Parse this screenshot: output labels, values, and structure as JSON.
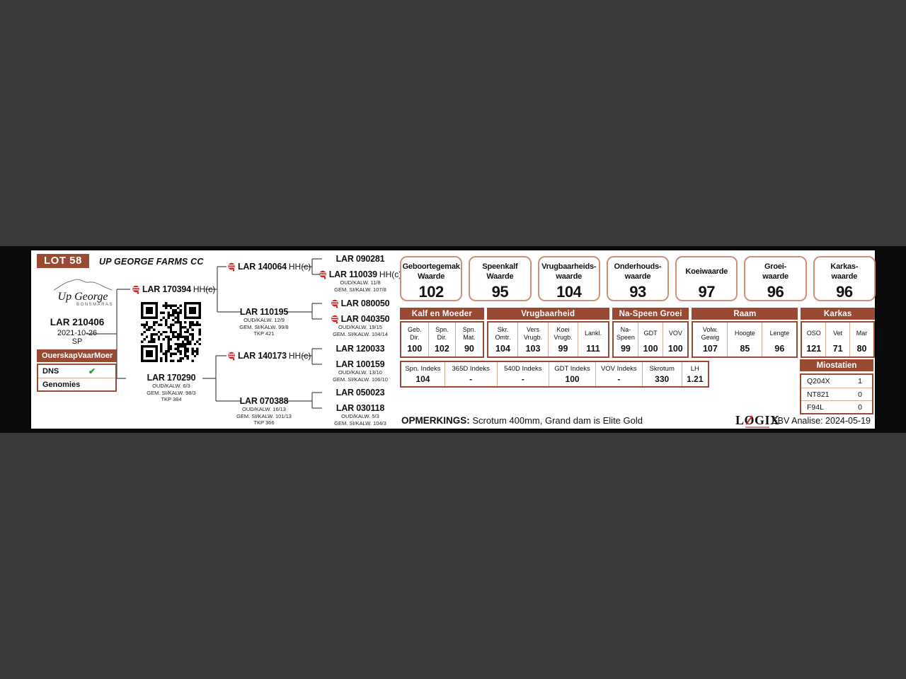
{
  "card": {
    "lot": "LOT 58",
    "farm": "UP GEORGE FARMS CC",
    "logo": {
      "name": "Up George",
      "sub": "BONSMARAS"
    },
    "animal": {
      "id": "LAR 210406",
      "date": "2021-10-26",
      "code": "SP"
    },
    "ouerskap": {
      "h1": "Ouerskap",
      "h2": "Vaar",
      "h3": "Moer",
      "row1": "DNS",
      "row1_check": "✔",
      "row2": "Genomies"
    }
  },
  "pedigree": {
    "sire": {
      "id": "LAR 170394",
      "suffix": "HH(c)"
    },
    "dam": {
      "id": "LAR 170290",
      "d1": "OUD/KALW. 6/3",
      "d2": "GEM. SI/KALW. 98/3",
      "d3": "TKP 384"
    },
    "ss": {
      "id": "LAR 140064",
      "suffix": "HH(c)"
    },
    "sd": {
      "id": "LAR 110195",
      "d1": "OUD/KALW. 12/9",
      "d2": "GEM. SI/KALW. 99/8",
      "d3": "TKP 421"
    },
    "ds": {
      "id": "LAR 140173",
      "suffix": "HH(c)"
    },
    "dd": {
      "id": "LAR 070388",
      "d1": "OUD/KALW. 16/13",
      "d2": "GEM. SI/KALW. 101/13",
      "d3": "TKP 366"
    },
    "sss": {
      "id": "LAR 090281"
    },
    "ssd": {
      "id": "LAR 110039",
      "suffix": "HH(c)",
      "d1": "OUD/KALW. 11/8",
      "d2": "GEM. SI/KALW. 107/8"
    },
    "sds": {
      "id": "LAR 080050"
    },
    "sdd": {
      "id": "LAR 040350",
      "d1": "OUD/KALW. 19/15",
      "d2": "GEM. SI/KALW. 104/14"
    },
    "dss": {
      "id": "LAR 120033"
    },
    "dsd": {
      "id": "LAR 100159",
      "d1": "OUD/KALW. 13/10",
      "d2": "GEM. SI/KALW. 106/10"
    },
    "dds": {
      "id": "LAR 050023"
    },
    "ddd": {
      "id": "LAR 030118",
      "d1": "OUD/KALW. 5/3",
      "d2": "GEM. SI/KALW. 104/3"
    }
  },
  "values": [
    {
      "l1": "Geboortegemak",
      "l2": "Waarde",
      "v": "102"
    },
    {
      "l1": "Speenkalf",
      "l2": "Waarde",
      "v": "95"
    },
    {
      "l1": "Vrugbaarheids-",
      "l2": "waarde",
      "v": "104"
    },
    {
      "l1": "Onderhouds-",
      "l2": "waarde",
      "v": "93"
    },
    {
      "l1": "Koeiwaarde",
      "l2": "",
      "v": "97"
    },
    {
      "l1": "Groei-",
      "l2": "waarde",
      "v": "96"
    },
    {
      "l1": "Karkas-",
      "l2": "waarde",
      "v": "96"
    }
  ],
  "ebv": {
    "groups": [
      {
        "title": "Kalf en Moeder",
        "cols": [
          {
            "l1": "Geb.",
            "l2": "Dir.",
            "v": "100"
          },
          {
            "l1": "Spn.",
            "l2": "Dir.",
            "v": "102"
          },
          {
            "l1": "Spn.",
            "l2": "Mat.",
            "v": "90"
          }
        ]
      },
      {
        "title": "Vrugbaarheid",
        "cols": [
          {
            "l1": "Skr.",
            "l2": "Omtr.",
            "v": "104"
          },
          {
            "l1": "Vers",
            "l2": "Vrugb.",
            "v": "103"
          },
          {
            "l1": "Koei",
            "l2": "Vrugb.",
            "v": "99"
          },
          {
            "l1": "Lankl.",
            "l2": "",
            "v": "111"
          }
        ]
      },
      {
        "title": "Na-Speen Groei",
        "cols": [
          {
            "l1": "Na-",
            "l2": "Speen",
            "v": "99"
          },
          {
            "l1": "GDT",
            "l2": "",
            "v": "100"
          },
          {
            "l1": "VOV",
            "l2": "",
            "v": "100"
          }
        ]
      },
      {
        "title": "Raam",
        "cols": [
          {
            "l1": "Volw.",
            "l2": "Gewig",
            "v": "107"
          },
          {
            "l1": "Hoogte",
            "l2": "",
            "v": "85"
          },
          {
            "l1": "Lengte",
            "l2": "",
            "v": "96"
          }
        ]
      },
      {
        "title": "Karkas",
        "cols": [
          {
            "l1": "OSO",
            "l2": "",
            "v": "121"
          },
          {
            "l1": "Vet",
            "l2": "",
            "v": "71"
          },
          {
            "l1": "Mar",
            "l2": "",
            "v": "80"
          }
        ]
      }
    ]
  },
  "indeks": [
    {
      "label": "Spn. Indeks",
      "value": "104"
    },
    {
      "label": "365D Indeks",
      "value": "-"
    },
    {
      "label": "540D Indeks",
      "value": "-"
    },
    {
      "label": "GDT Indeks",
      "value": "100"
    },
    {
      "label": "VOV Indeks",
      "value": "-"
    },
    {
      "label": "Skrotum",
      "value": "330"
    },
    {
      "label": "LH",
      "value": "1.21"
    }
  ],
  "miostatien": {
    "title": "Miostatien",
    "rows": [
      {
        "g": "Q204X",
        "v": "1"
      },
      {
        "g": "NT821",
        "v": "0"
      },
      {
        "g": "F94L",
        "v": "0"
      }
    ]
  },
  "footer": {
    "remarks_label": "OPMERKINGS:",
    "remarks": "Scrotum 400mm, Grand dam is Elite Gold",
    "logix_l": "L",
    "logix_o": "O",
    "logix_rest": "GIX",
    "analysis": "EBV Analise: 2024-05-19"
  },
  "colors": {
    "brown": "#9a4a33",
    "box_border": "#cf9078",
    "check_green": "#1fa11f",
    "icon_red": "#d42020"
  }
}
